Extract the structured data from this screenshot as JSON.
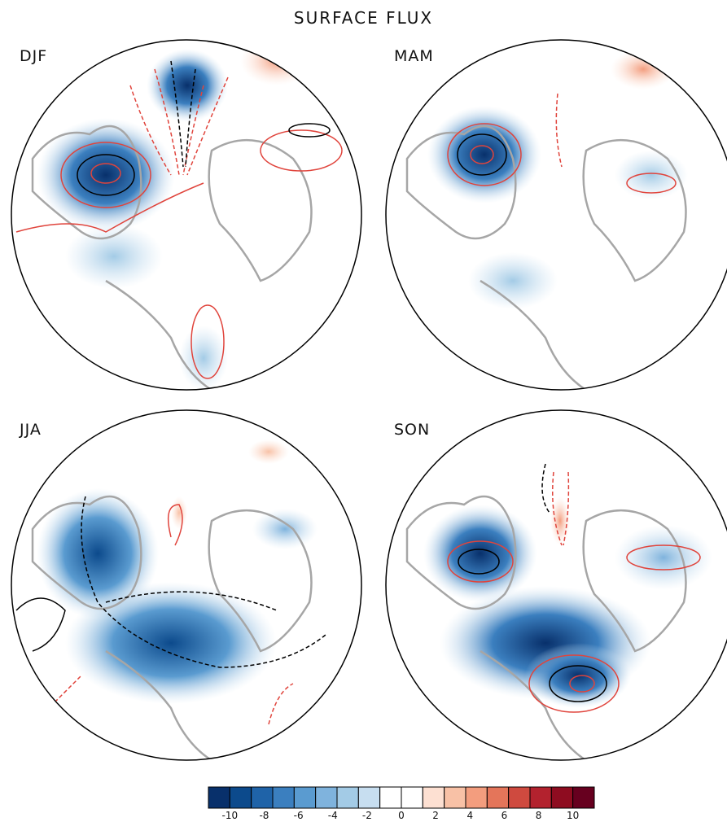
{
  "title": "SURFACE FLUX",
  "panels": [
    {
      "label": "DJF"
    },
    {
      "label": "MAM"
    },
    {
      "label": "JJA"
    },
    {
      "label": "SON"
    }
  ],
  "colorbar": {
    "ticks": [
      "-10",
      "-8",
      "-6",
      "-4",
      "-2",
      "0",
      "2",
      "4",
      "6",
      "8",
      "10"
    ],
    "colors": [
      "#08306b",
      "#0c4a8c",
      "#1f63a8",
      "#3b7fbf",
      "#5a9bd0",
      "#7fb3dd",
      "#a3cbe6",
      "#c7def0",
      "#ffffff",
      "#ffffff",
      "#fde0d2",
      "#f8c1a6",
      "#f39d7e",
      "#e4755a",
      "#cf4a3f",
      "#b3222e",
      "#8e0c20",
      "#67001f"
    ]
  },
  "colors": {
    "land_outline": "#a6a6a6",
    "contour_positive": "#e0443c",
    "contour_negative_black": "#000000"
  }
}
